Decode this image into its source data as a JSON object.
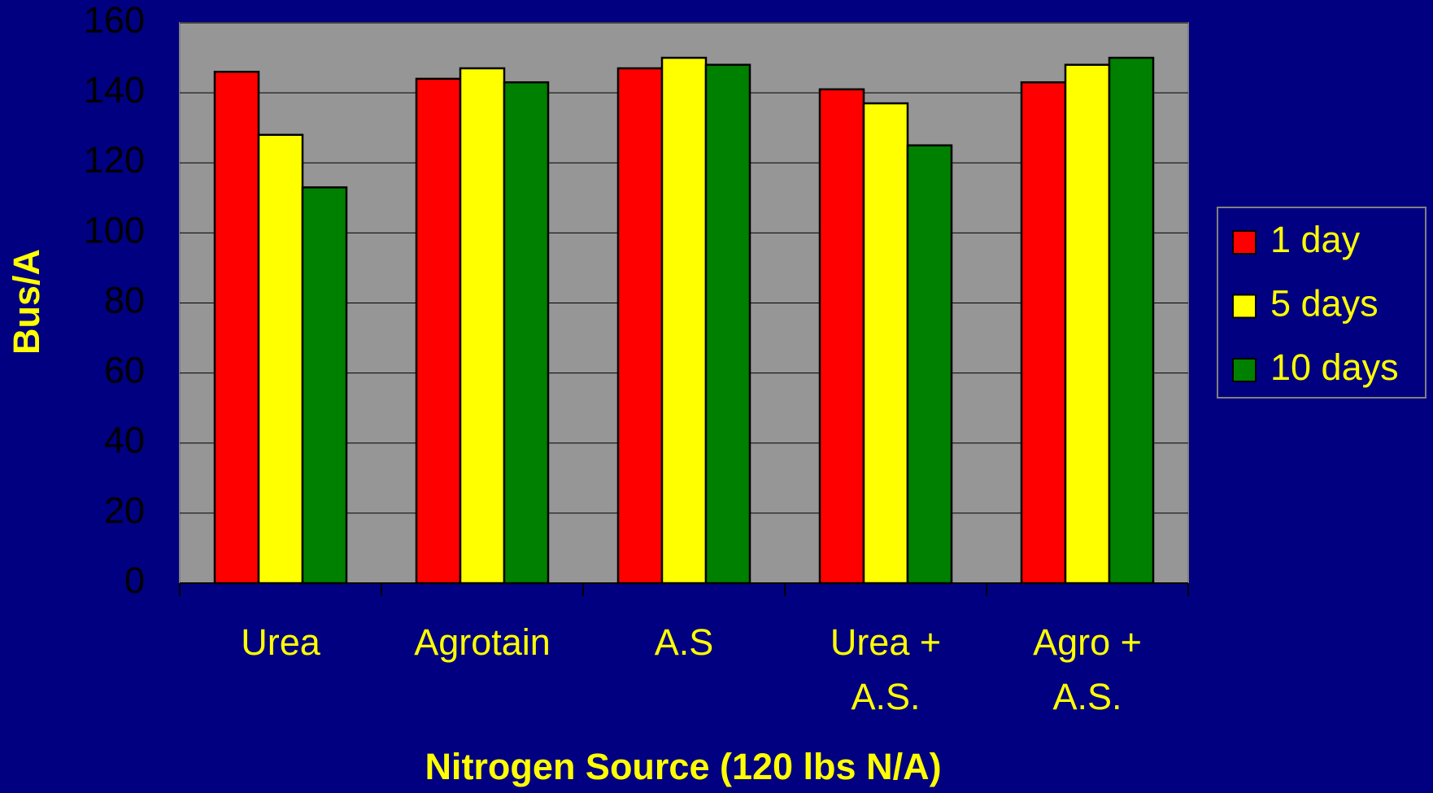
{
  "chart_data": {
    "type": "bar",
    "y_label": "Bus/A",
    "x_label": "Nitrogen Source (120 lbs N/A)",
    "categories": [
      "Urea",
      "Agrotain",
      "A.S",
      "Urea +\nA.S.",
      "Agro +\nA.S."
    ],
    "series": [
      {
        "name": "1 day",
        "color": "#ff0000",
        "values": [
          146,
          144,
          147,
          141,
          143
        ]
      },
      {
        "name": "5 days",
        "color": "#ffff00",
        "values": [
          128,
          147,
          150,
          137,
          148
        ]
      },
      {
        "name": "10 days",
        "color": "#008000",
        "values": [
          113,
          143,
          148,
          125,
          150
        ]
      }
    ],
    "ylim": [
      0,
      160
    ],
    "yticks": [
      0,
      20,
      40,
      60,
      80,
      100,
      120,
      140,
      160
    ],
    "grid": true,
    "legend": "right"
  }
}
